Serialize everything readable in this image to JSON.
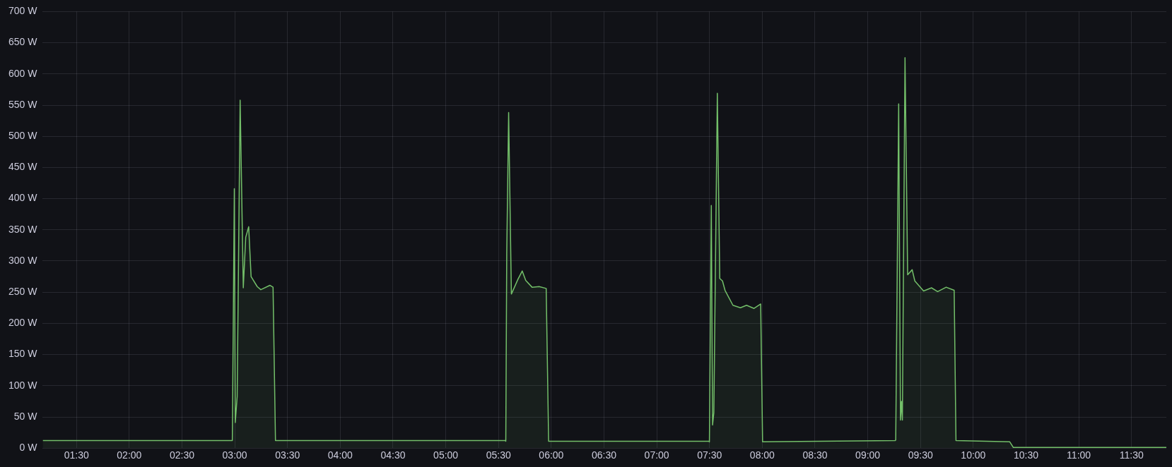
{
  "chart_data": {
    "type": "area",
    "marker": "none",
    "line_style": "solid",
    "grid": true,
    "legend": false,
    "xlim": [
      1.18,
      11.83
    ],
    "xticks": [
      {
        "value": 1.5,
        "label": "01:30"
      },
      {
        "value": 2,
        "label": "02:00"
      },
      {
        "value": 2.5,
        "label": "02:30"
      },
      {
        "value": 3,
        "label": "03:00"
      },
      {
        "value": 3.5,
        "label": "03:30"
      },
      {
        "value": 4,
        "label": "04:00"
      },
      {
        "value": 4.5,
        "label": "04:30"
      },
      {
        "value": 5,
        "label": "05:00"
      },
      {
        "value": 5.5,
        "label": "05:30"
      },
      {
        "value": 6,
        "label": "06:00"
      },
      {
        "value": 6.5,
        "label": "06:30"
      },
      {
        "value": 7,
        "label": "07:00"
      },
      {
        "value": 7.5,
        "label": "07:30"
      },
      {
        "value": 8,
        "label": "08:00"
      },
      {
        "value": 8.5,
        "label": "08:30"
      },
      {
        "value": 9,
        "label": "09:00"
      },
      {
        "value": 9.5,
        "label": "09:30"
      },
      {
        "value": 10,
        "label": "10:00"
      },
      {
        "value": 10.5,
        "label": "10:30"
      },
      {
        "value": 11,
        "label": "11:00"
      },
      {
        "value": 11.5,
        "label": "11:30"
      }
    ],
    "ylim": [
      0,
      700
    ],
    "yticks": [
      {
        "value": 0,
        "label": "0 W"
      },
      {
        "value": 50,
        "label": "50 W"
      },
      {
        "value": 100,
        "label": "100 W"
      },
      {
        "value": 150,
        "label": "150 W"
      },
      {
        "value": 200,
        "label": "200 W"
      },
      {
        "value": 250,
        "label": "250 W"
      },
      {
        "value": 300,
        "label": "300 W"
      },
      {
        "value": 350,
        "label": "350 W"
      },
      {
        "value": 400,
        "label": "400 W"
      },
      {
        "value": 450,
        "label": "450 W"
      },
      {
        "value": 500,
        "label": "500 W"
      },
      {
        "value": 550,
        "label": "550 W"
      },
      {
        "value": 600,
        "label": "600 W"
      },
      {
        "value": 650,
        "label": "650 W"
      },
      {
        "value": 700,
        "label": "700 W"
      }
    ],
    "series": [
      {
        "color": "#73bf69",
        "x": [
          1.18,
          2.97,
          2.977,
          2.996,
          3.005,
          3.023,
          3.051,
          3.081,
          3.104,
          3.132,
          3.155,
          3.213,
          3.247,
          3.333,
          3.363,
          3.386,
          5.565,
          5.569,
          5.578,
          5.596,
          5.622,
          5.685,
          5.725,
          5.758,
          5.818,
          5.885,
          5.952,
          5.975,
          7.495,
          7.499,
          7.517,
          7.529,
          7.541,
          7.574,
          7.597,
          7.623,
          7.647,
          7.722,
          7.793,
          7.851,
          7.922,
          7.985,
          8.003,
          9.26,
          9.265,
          9.293,
          9.31,
          9.32,
          9.328,
          9.353,
          9.378,
          9.421,
          9.446,
          9.529,
          9.604,
          9.662,
          9.743,
          9.819,
          9.836,
          10.346,
          10.38,
          11.83
        ],
        "values": [
          12,
          12,
          12,
          416,
          41,
          83,
          558,
          257,
          338,
          355,
          275,
          259,
          254,
          261,
          258,
          12,
          12,
          11,
          312,
          538,
          247,
          271,
          284,
          269,
          258,
          259,
          256,
          11,
          11,
          10,
          389,
          37,
          57,
          569,
          272,
          268,
          253,
          229,
          225,
          229,
          224,
          231,
          10,
          12,
          13,
          552,
          45,
          75,
          45,
          626,
          278,
          286,
          268,
          252,
          257,
          251,
          258,
          253,
          12,
          10,
          1,
          1
        ]
      }
    ]
  }
}
